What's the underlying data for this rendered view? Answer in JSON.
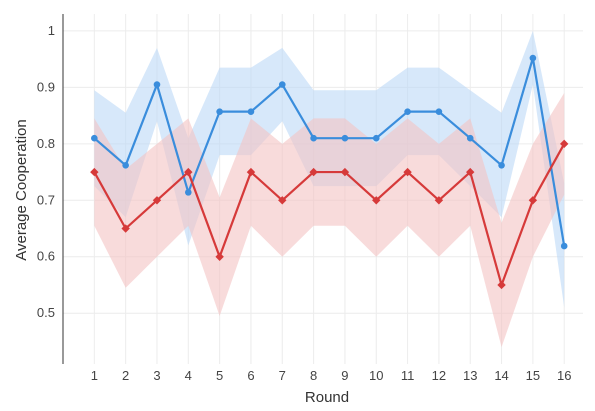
{
  "chart_data": {
    "type": "line",
    "xlabel": "Round",
    "ylabel": "Average Cooperation",
    "x": [
      1,
      2,
      3,
      4,
      5,
      6,
      7,
      8,
      9,
      10,
      11,
      12,
      13,
      14,
      15,
      16
    ],
    "x_tick_labels": [
      "1",
      "2",
      "3",
      "4",
      "5",
      "6",
      "7",
      "8",
      "9",
      "10",
      "11",
      "12",
      "13",
      "14",
      "15",
      "16"
    ],
    "xlim": [
      0,
      16.6
    ],
    "ylim": [
      0.41,
      1.03
    ],
    "y_ticks": [
      0.5,
      0.6,
      0.7,
      0.8,
      0.9,
      1.0
    ],
    "y_tick_labels": [
      "0.5",
      "0.6",
      "0.7",
      "0.8",
      "0.9",
      "1"
    ],
    "grid": true,
    "series": [
      {
        "color": "#3a8ddc",
        "band_color": "#bcd8f7",
        "marker": "circle",
        "values": [
          0.81,
          0.762,
          0.905,
          0.714,
          0.857,
          0.857,
          0.905,
          0.81,
          0.81,
          0.81,
          0.857,
          0.857,
          0.81,
          0.762,
          0.952,
          0.619
        ],
        "upper": [
          0.895,
          0.855,
          0.97,
          0.81,
          0.935,
          0.935,
          0.97,
          0.895,
          0.895,
          0.895,
          0.935,
          0.935,
          0.895,
          0.855,
          1.0,
          0.73
        ],
        "lower": [
          0.725,
          0.67,
          0.84,
          0.62,
          0.78,
          0.78,
          0.84,
          0.725,
          0.725,
          0.725,
          0.78,
          0.78,
          0.725,
          0.67,
          0.905,
          0.51
        ]
      },
      {
        "color": "#d63a3a",
        "band_color": "#f3c3c3",
        "marker": "diamond",
        "values": [
          0.75,
          0.65,
          0.7,
          0.75,
          0.6,
          0.75,
          0.7,
          0.75,
          0.75,
          0.7,
          0.75,
          0.7,
          0.75,
          0.55,
          0.7,
          0.8
        ],
        "upper": [
          0.845,
          0.755,
          0.8,
          0.845,
          0.705,
          0.845,
          0.8,
          0.845,
          0.845,
          0.8,
          0.845,
          0.8,
          0.845,
          0.66,
          0.8,
          0.89
        ],
        "lower": [
          0.655,
          0.545,
          0.6,
          0.655,
          0.495,
          0.655,
          0.6,
          0.655,
          0.655,
          0.6,
          0.655,
          0.6,
          0.655,
          0.44,
          0.6,
          0.71
        ]
      }
    ]
  }
}
